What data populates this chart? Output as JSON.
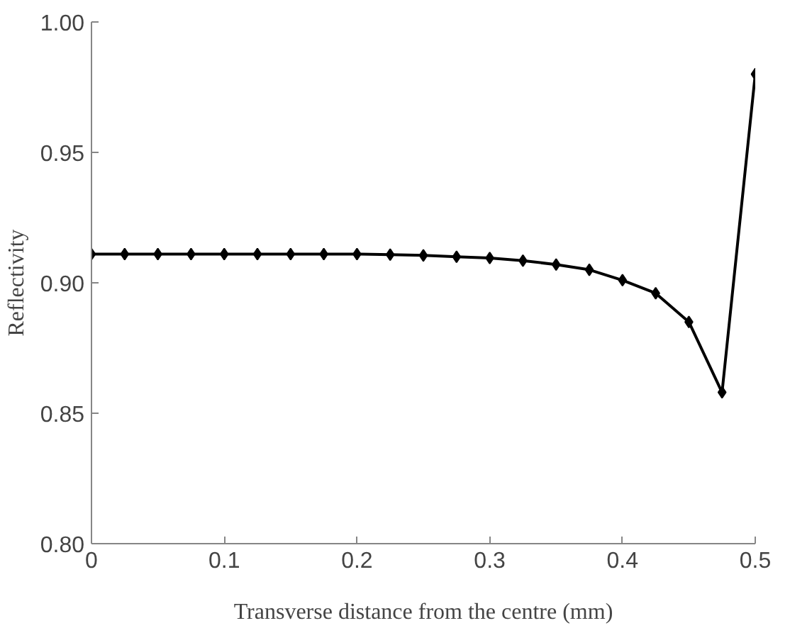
{
  "chart_data": {
    "type": "line",
    "xlabel": "Transverse distance from the centre (mm)",
    "ylabel": "Reflectivity",
    "x": [
      0,
      0.025,
      0.05,
      0.075,
      0.1,
      0.125,
      0.15,
      0.175,
      0.2,
      0.225,
      0.25,
      0.275,
      0.3,
      0.325,
      0.35,
      0.375,
      0.4,
      0.425,
      0.45,
      0.475,
      0.5
    ],
    "series": [
      {
        "color": "#000000",
        "values": [
          0.911,
          0.911,
          0.911,
          0.911,
          0.911,
          0.911,
          0.911,
          0.911,
          0.911,
          0.9108,
          0.9105,
          0.91,
          0.9095,
          0.9085,
          0.907,
          0.905,
          0.901,
          0.896,
          0.885,
          0.858,
          0.98
        ]
      }
    ],
    "xlim": [
      0,
      0.5
    ],
    "xticks": [
      {
        "value": 0,
        "label": "0"
      },
      0.1,
      0.2,
      0.3,
      0.4,
      0.5
    ],
    "ylim": [
      0.8,
      1.0
    ],
    "yticks": [
      {
        "value": 0.8,
        "label": "0.80"
      },
      {
        "value": 0.85,
        "label": "0.85"
      },
      {
        "value": 0.9,
        "label": "0.90"
      },
      {
        "value": 0.95,
        "label": "0.95"
      },
      {
        "value": 1.0,
        "label": "1.00"
      }
    ],
    "grid": false,
    "marker": "diamond",
    "line_style": "solid"
  }
}
